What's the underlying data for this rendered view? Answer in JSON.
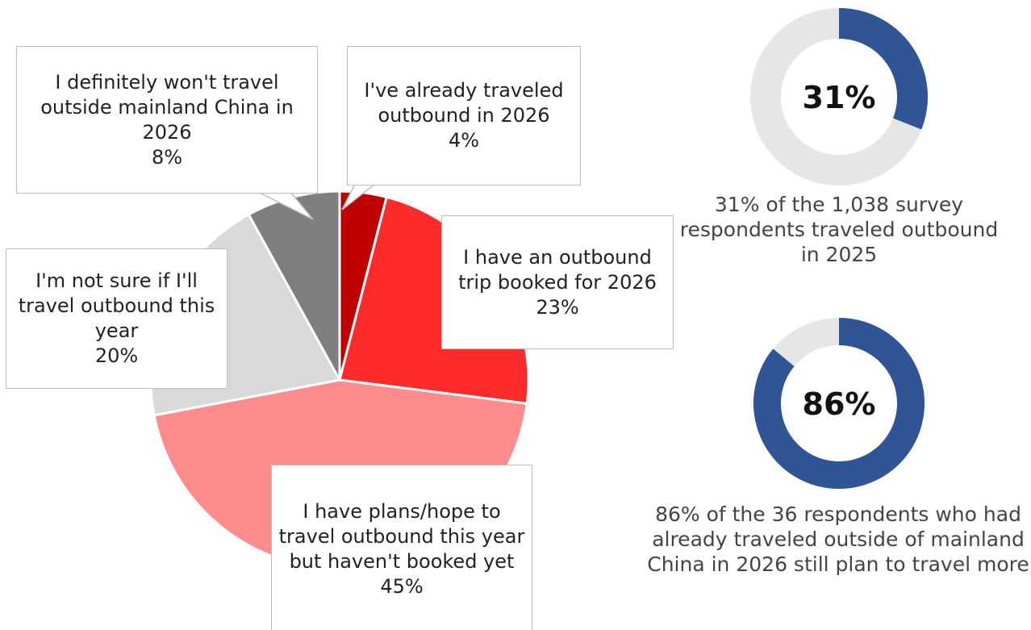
{
  "chart_data": [
    {
      "type": "pie",
      "categories": [
        "I've already traveled outbound in 2026",
        "I have an outbound trip booked for 2026",
        "I have plans/hope to travel outbound this year but haven't booked yet",
        "I'm not sure if I'll travel outbound this year",
        "I definitely won't travel outside mainland China in 2026"
      ],
      "values": [
        4,
        23,
        45,
        20,
        8
      ],
      "value_labels": [
        "4%",
        "23%",
        "45%",
        "20%",
        "8%"
      ],
      "colors": [
        "#C00000",
        "#FF2A2A",
        "#FF8C8C",
        "#D9D9D9",
        "#7F7F7F"
      ]
    },
    {
      "type": "donut",
      "values": [
        31
      ],
      "value_labels": [
        "31%"
      ],
      "color": "#2F5597",
      "track_color": "#E7E6E6",
      "caption": "31% of the 1,038 survey respondents traveled outbound in 2025"
    },
    {
      "type": "donut",
      "values": [
        86
      ],
      "value_labels": [
        "86%"
      ],
      "color": "#2F5597",
      "track_color": "#E7E6E6",
      "caption": "86% of the 36 respondents who had already traveled outside of mainland China in 2026 still plan to travel more"
    }
  ]
}
